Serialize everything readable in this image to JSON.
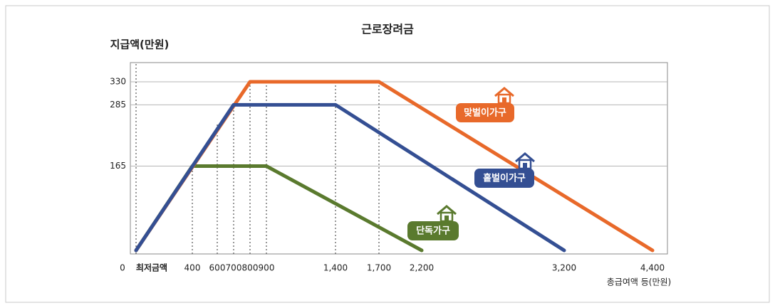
{
  "chart_data": {
    "type": "line",
    "title": "근로장려금",
    "y_label": "지급액(만원)",
    "x_label": "총급여액 등(만원)",
    "xlim": [
      0,
      4400
    ],
    "xticks": [
      {
        "value": 0,
        "label": "최저금액"
      },
      400,
      600,
      700,
      800,
      900,
      {
        "value": 1400,
        "label": "1,400"
      },
      {
        "value": 1700,
        "label": "1,700"
      },
      {
        "value": 2200,
        "label": "2,200"
      },
      {
        "value": 3200,
        "label": "3,200"
      },
      {
        "value": 4400,
        "label": "4,400"
      }
    ],
    "ylim": [
      0,
      330
    ],
    "yticks": [
      0,
      165,
      285,
      330
    ],
    "grid": true,
    "series": [
      {
        "name": "맞벌이가구",
        "color": "#e8692a",
        "x": [
          0,
          800,
          1700,
          4400
        ],
        "values": [
          0,
          330,
          330,
          0
        ]
      },
      {
        "name": "홑벌이가구",
        "color": "#344f93",
        "x": [
          0,
          700,
          1400,
          3200
        ],
        "values": [
          0,
          285,
          285,
          0
        ]
      },
      {
        "name": "단독가구",
        "color": "#5a7a2e",
        "x": [
          0,
          400,
          900,
          2200
        ],
        "values": [
          0,
          165,
          165,
          0
        ]
      }
    ]
  }
}
